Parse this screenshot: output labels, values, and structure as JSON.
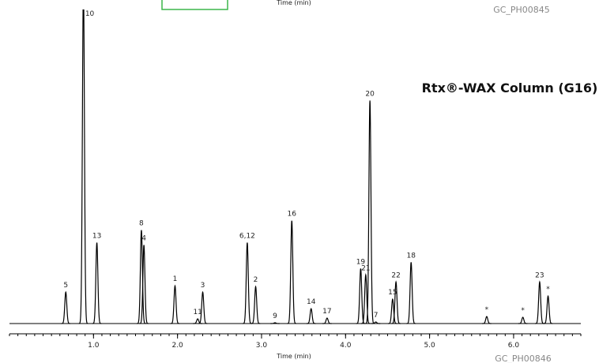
{
  "chart_data": {
    "type": "chromatogram",
    "title": "Rtx®-WAX Column (G16)",
    "top_axis_label": "Time (min)",
    "top_code": "GC_PH00845",
    "bottom_code": "GC_PH00846",
    "x_label": "Time (min)",
    "xlim": [
      0,
      6.8
    ],
    "xticks": [
      {
        "value": 1,
        "label": "1.0"
      },
      {
        "value": 2,
        "label": "2.0"
      },
      {
        "value": 3,
        "label": "3.0"
      },
      {
        "value": 4,
        "label": "4.0"
      },
      {
        "value": 5,
        "label": "5.0"
      },
      {
        "value": 6,
        "label": "6.0"
      }
    ],
    "minor_tick_step": 0.1,
    "ylim": [
      0,
      400
    ],
    "color": "#000000",
    "peaks": [
      {
        "label": "5",
        "time": 0.67,
        "height": 40
      },
      {
        "label": "10",
        "time": 0.88,
        "height": 430
      },
      {
        "label": "13",
        "time": 1.04,
        "height": 103
      },
      {
        "label": "8",
        "time": 1.57,
        "height": 119
      },
      {
        "label": "4",
        "time": 1.6,
        "height": 100
      },
      {
        "label": "1",
        "time": 1.97,
        "height": 48
      },
      {
        "label": "11",
        "time": 2.24,
        "height": 6
      },
      {
        "label": "3",
        "time": 2.3,
        "height": 40
      },
      {
        "label": "6,12",
        "time": 2.83,
        "height": 103
      },
      {
        "label": "2",
        "time": 2.93,
        "height": 47
      },
      {
        "label": "9",
        "time": 3.16,
        "height": 1
      },
      {
        "label": "16",
        "time": 3.36,
        "height": 131
      },
      {
        "label": "14",
        "time": 3.59,
        "height": 19
      },
      {
        "label": "17",
        "time": 3.78,
        "height": 7
      },
      {
        "label": "19",
        "time": 4.18,
        "height": 70
      },
      {
        "label": "21",
        "time": 4.24,
        "height": 62
      },
      {
        "label": "20",
        "time": 4.29,
        "height": 284
      },
      {
        "label": "7",
        "time": 4.36,
        "height": 2
      },
      {
        "label": "15",
        "time": 4.56,
        "height": 31
      },
      {
        "label": "22",
        "time": 4.6,
        "height": 53
      },
      {
        "label": "18",
        "time": 4.78,
        "height": 78
      },
      {
        "label": "*",
        "time": 5.68,
        "height": 9
      },
      {
        "label": "*",
        "time": 6.11,
        "height": 8
      },
      {
        "label": "23",
        "time": 6.31,
        "height": 53
      },
      {
        "label": "*",
        "time": 6.41,
        "height": 35
      }
    ]
  }
}
